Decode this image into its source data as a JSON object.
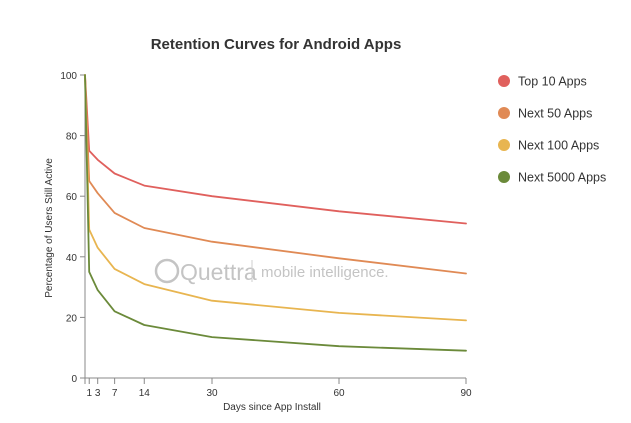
{
  "chart_data": {
    "type": "line",
    "title": "Retention Curves for Android Apps",
    "xlabel": "Days since App Install",
    "ylabel": "Percentage of Users Still Active",
    "x": [
      0,
      1,
      3,
      7,
      14,
      30,
      60,
      90
    ],
    "xticks": [
      1,
      3,
      7,
      14,
      30,
      60,
      90
    ],
    "yticks": [
      0,
      20,
      40,
      60,
      80,
      100
    ],
    "xlim": [
      0,
      90
    ],
    "ylim": [
      0,
      100
    ],
    "grid": false,
    "legend_position": "right",
    "series": [
      {
        "name": "Top 10 Apps",
        "color": "#e0605d",
        "values": [
          100,
          75,
          72,
          67.5,
          63.5,
          60,
          55,
          51
        ]
      },
      {
        "name": "Next 50 Apps",
        "color": "#e08a55",
        "values": [
          100,
          65,
          61,
          54.5,
          49.5,
          45,
          39.5,
          34.5
        ]
      },
      {
        "name": "Next 100 Apps",
        "color": "#e8b550",
        "values": [
          100,
          49,
          43,
          36,
          31,
          25.5,
          21.5,
          19
        ]
      },
      {
        "name": "Next 5000 Apps",
        "color": "#6b8a3a",
        "values": [
          100,
          35,
          29,
          22,
          17.5,
          13.5,
          10.5,
          9
        ]
      }
    ]
  },
  "watermark": {
    "brand": "Quettra",
    "tagline": "mobile intelligence."
  }
}
